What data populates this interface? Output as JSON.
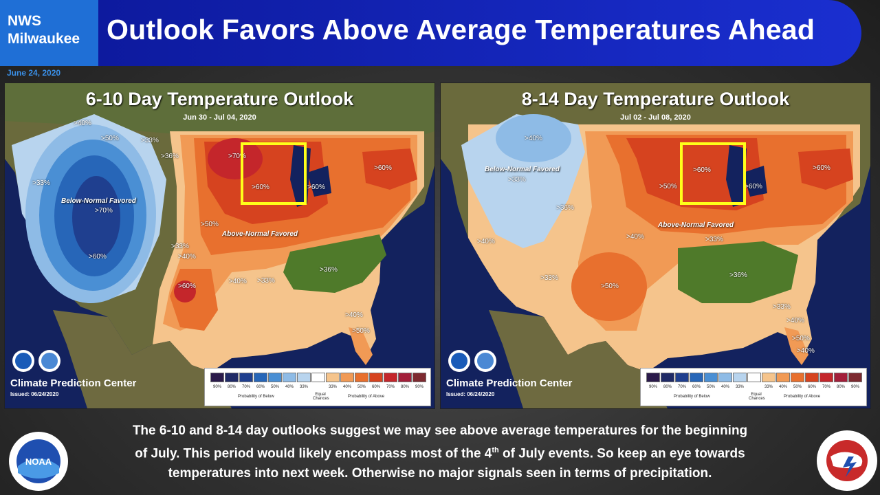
{
  "header": {
    "office": "NWS\nMilwaukee",
    "office_line1": "NWS",
    "office_line2": "Milwaukee",
    "title": "Outlook Favors Above Average Temperatures Ahead",
    "date": "June 24, 2020"
  },
  "panels": [
    {
      "title": "6-10 Day Temperature Outlook",
      "dates": "Jun 30 - Jul 04, 2020",
      "agency": "Climate Prediction Center",
      "issued": "Issued: 06/24/2020",
      "labels": {
        "a": ">40%",
        "b": ">50%",
        "c": ">33%",
        "d": ">33%",
        "e": "Below-Normal Favored",
        "f": ">70%",
        "g": ">60%",
        "h": ">36%",
        "i": ">70%",
        "j": ">60%",
        "k": ">60%",
        "l": ">60%",
        "m": ">50%",
        "n": "Above-Normal Favored",
        "o": ">33%",
        "p": ">40%",
        "q": ">60%",
        "r": ">40%",
        "s": ">33%",
        "t": ">36%",
        "u": ">40%",
        "v": ">50%"
      }
    },
    {
      "title": "8-14 Day Temperature Outlook",
      "dates": "Jul 02 - Jul 08, 2020",
      "agency": "Climate Prediction Center",
      "issued": "Issued: 06/24/2020",
      "labels": {
        "a": ">40%",
        "b": "Below-Normal Favored",
        "c": ">33%",
        "d": ">36%",
        "e": ">60%",
        "f": ">50%",
        "g": ">60%",
        "h": ">60%",
        "i": "Above-Normal Favored",
        "j": ">40%",
        "k": ">33%",
        "l": ">40%",
        "m": ">33%",
        "n": ">50%",
        "o": ">36%",
        "p": ">33%",
        "q": ">40%",
        "r": ">50%",
        "s": ">40%"
      }
    }
  ],
  "legend": {
    "percents": [
      "90%",
      "80%",
      "70%",
      "60%",
      "50%",
      "40%",
      "33%",
      "33%",
      "40%",
      "50%",
      "60%",
      "70%",
      "80%",
      "90%"
    ],
    "colors": [
      "#2a1a4a",
      "#1f2a66",
      "#1f3f8f",
      "#2766b8",
      "#4a8fd4",
      "#8ebbe6",
      "#b8d4ee",
      "#ffffff",
      "#f5c48c",
      "#f19a55",
      "#e8702e",
      "#d6431f",
      "#c4262b",
      "#a31f3a",
      "#7d2a30"
    ],
    "below": "Probability of Below",
    "equal": "Equal Chances",
    "above": "Probability of Above"
  },
  "footer": {
    "line1": "The 6-10 and 8-14 day outlooks suggest we may see above average temperatures for the beginning",
    "line2a": "of July. This period would likely encompass most of the 4",
    "line2sup": "th",
    "line2b": " of July events. So keep an eye towards",
    "line3": "temperatures into next week. Otherwise no major signals seen in terms of precipitation."
  },
  "logos": {
    "noaa": "NOAA",
    "nws": "NATIONAL WEATHER SERVICE"
  }
}
